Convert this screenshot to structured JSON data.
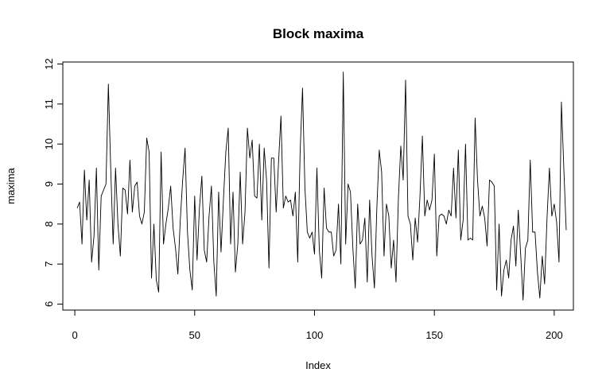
{
  "chart_data": {
    "type": "line",
    "title": "Block maxima",
    "xlabel": "Index",
    "ylabel": "maxima",
    "xlim": [
      -5,
      208
    ],
    "ylim": [
      5.85,
      12.05
    ],
    "xticks": [
      0,
      50,
      100,
      150,
      200
    ],
    "yticks": [
      6,
      7,
      8,
      9,
      10,
      11,
      12
    ],
    "grid": false,
    "series": [
      {
        "values": [
          8.4,
          8.55,
          7.5,
          9.35,
          8.1,
          9.1,
          7.05,
          7.7,
          9.4,
          6.85,
          8.7,
          8.85,
          9.0,
          11.5,
          9.35,
          7.5,
          9.4,
          8.0,
          7.2,
          8.9,
          8.85,
          8.25,
          9.6,
          8.3,
          8.95,
          9.05,
          8.2,
          8.0,
          8.3,
          10.15,
          9.8,
          6.65,
          8.0,
          6.6,
          6.3,
          9.8,
          7.5,
          8.0,
          8.4,
          8.95,
          7.9,
          7.4,
          6.75,
          8.1,
          9.1,
          9.9,
          7.8,
          6.85,
          6.35,
          8.7,
          7.1,
          8.4,
          9.2,
          7.35,
          7.05,
          8.2,
          8.95,
          7.05,
          6.2,
          8.8,
          7.3,
          8.6,
          9.8,
          10.4,
          7.5,
          8.8,
          6.8,
          7.5,
          9.3,
          7.5,
          8.3,
          10.4,
          9.65,
          10.1,
          8.7,
          8.65,
          10.0,
          8.1,
          9.9,
          9.1,
          6.9,
          9.65,
          9.65,
          8.3,
          9.55,
          10.7,
          8.4,
          8.7,
          8.55,
          8.6,
          8.2,
          8.8,
          7.05,
          9.8,
          11.4,
          8.9,
          7.8,
          7.65,
          7.8,
          7.25,
          9.4,
          7.35,
          6.65,
          8.9,
          7.9,
          7.8,
          7.8,
          7.2,
          7.35,
          8.5,
          7.0,
          11.8,
          7.5,
          9.0,
          8.8,
          7.4,
          6.4,
          8.5,
          7.5,
          7.6,
          8.15,
          6.55,
          8.6,
          7.2,
          6.4,
          8.4,
          9.85,
          9.3,
          7.2,
          8.5,
          8.2,
          6.9,
          7.6,
          6.55,
          8.65,
          9.95,
          9.1,
          11.6,
          8.2,
          8.0,
          7.1,
          8.15,
          7.55,
          8.7,
          10.2,
          8.2,
          8.6,
          8.35,
          8.6,
          9.75,
          7.2,
          8.2,
          8.25,
          8.2,
          8.0,
          8.35,
          8.2,
          9.4,
          8.15,
          9.85,
          7.6,
          8.1,
          10.0,
          7.6,
          7.65,
          7.6,
          10.65,
          9.1,
          8.2,
          8.45,
          8.15,
          7.45,
          9.1,
          9.05,
          8.95,
          6.35,
          8.0,
          6.2,
          6.85,
          7.1,
          6.65,
          7.6,
          7.95,
          6.95,
          8.35,
          7.25,
          6.1,
          7.4,
          7.6,
          9.6,
          7.8,
          7.8,
          6.8,
          6.15,
          7.2,
          6.5,
          8.15,
          9.4,
          8.2,
          8.5,
          8.05,
          7.05,
          11.05,
          9.4,
          7.85
        ]
      }
    ]
  }
}
